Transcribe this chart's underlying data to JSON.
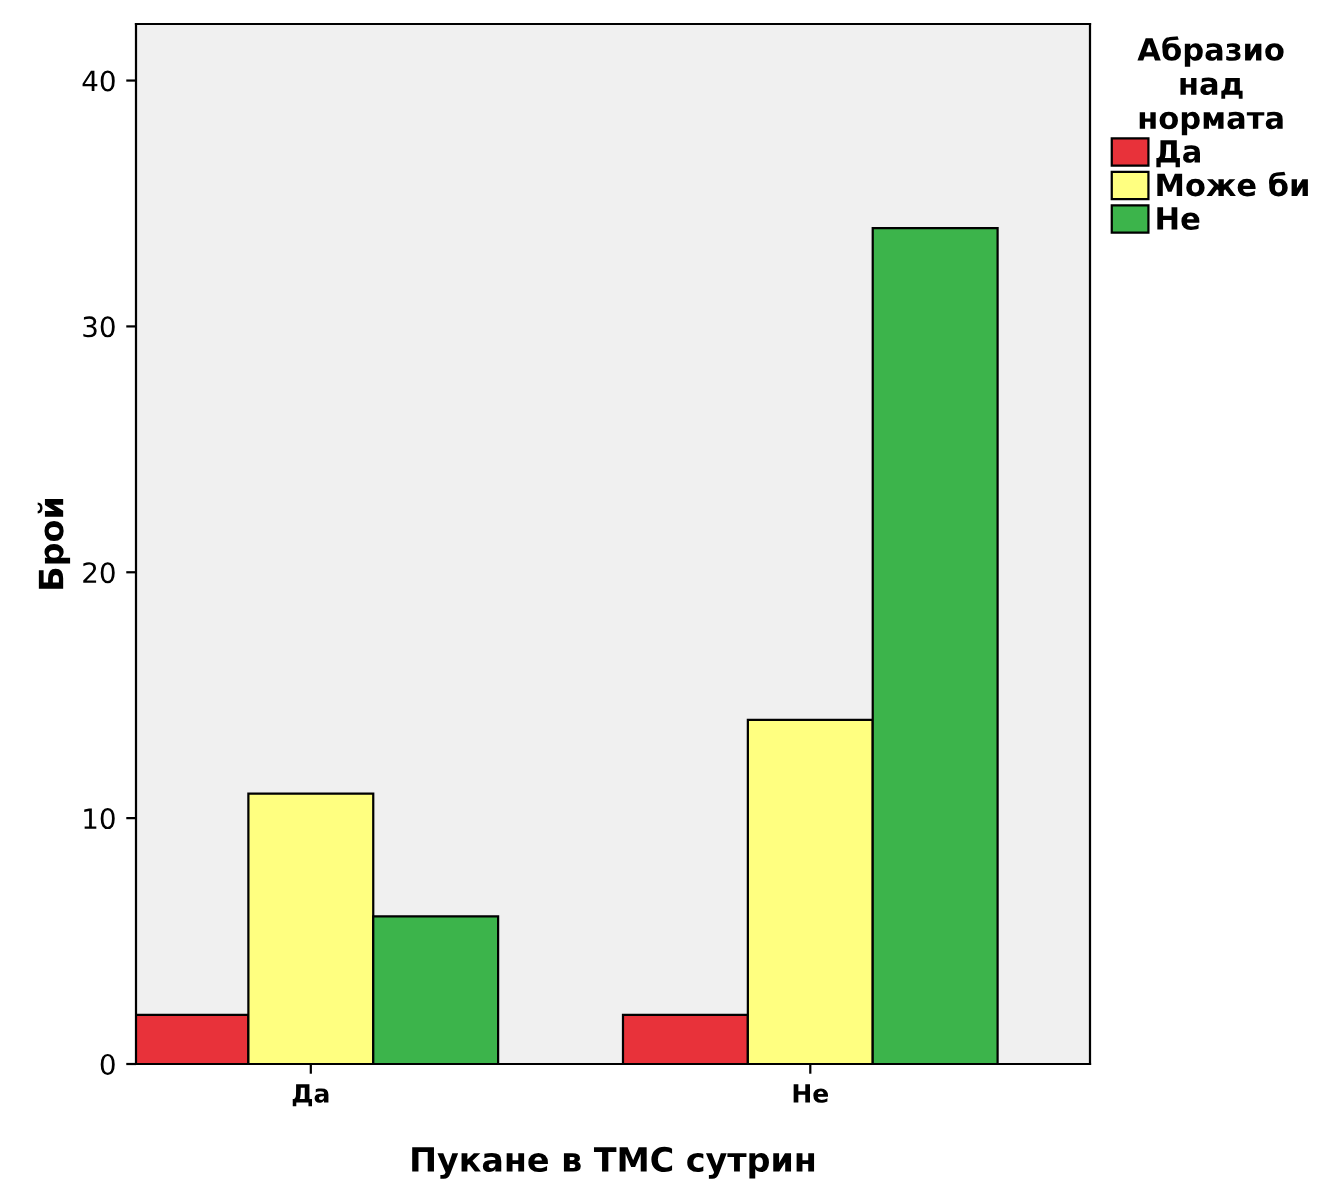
{
  "chart_data": {
    "type": "bar",
    "xlabel": "Пукане в ТМС сутрин",
    "ylabel": "Брой",
    "legend_title": "Абразио\nнад\nнормата",
    "categories": [
      "Да",
      "Не"
    ],
    "series": [
      {
        "name": "Да",
        "color": "#e8323a",
        "values": [
          2,
          2
        ]
      },
      {
        "name": "Може би",
        "color": "#ffff80",
        "values": [
          11,
          14
        ]
      },
      {
        "name": "Не",
        "color": "#3cb44b",
        "values": [
          6,
          34
        ]
      }
    ],
    "ylim": [
      0,
      42.3
    ],
    "yticks": [
      0,
      10,
      20,
      30,
      40
    ],
    "grid": false,
    "legend": "top right"
  }
}
